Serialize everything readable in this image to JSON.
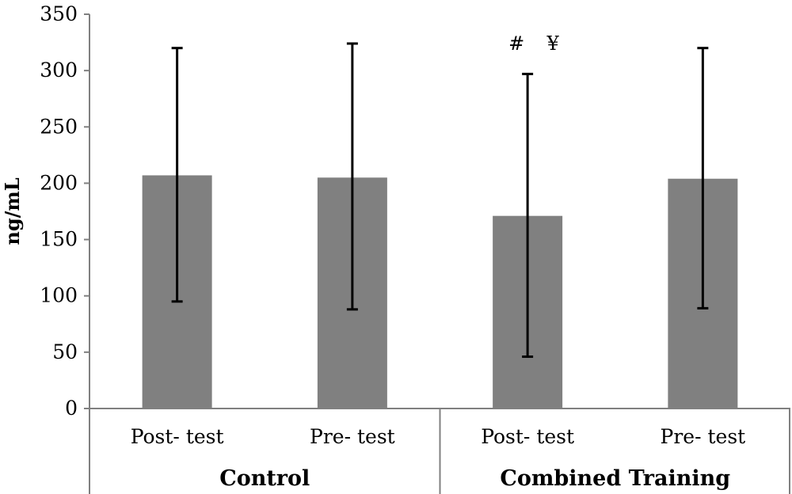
{
  "chart_data": {
    "type": "bar",
    "ylabel": "ng/mL",
    "ylim": [
      0,
      350
    ],
    "yticks": [
      0,
      50,
      100,
      150,
      200,
      250,
      300,
      350
    ],
    "grid": false,
    "legend": "none",
    "bar_color": "#808080",
    "categories": [
      "Post- test",
      "Pre- test",
      "Post- test",
      "Pre- test"
    ],
    "groups": [
      {
        "label": "Control",
        "categories": [
          0,
          1
        ]
      },
      {
        "label": "Combined Training",
        "categories": [
          2,
          3
        ]
      }
    ],
    "values": [
      207,
      205,
      171,
      204
    ],
    "error_bars": [
      {
        "low": 95,
        "high": 320
      },
      {
        "low": 88,
        "high": 324
      },
      {
        "low": 46,
        "high": 297
      },
      {
        "low": 89,
        "high": 320
      }
    ],
    "annotations": [
      {
        "category": 2,
        "text": "#"
      },
      {
        "category": 2,
        "text": "¥"
      }
    ]
  }
}
